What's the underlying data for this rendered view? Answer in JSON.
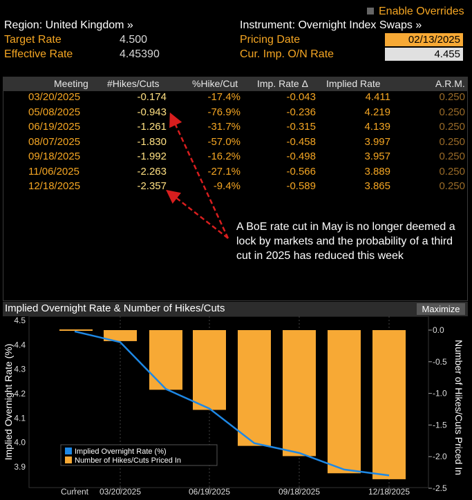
{
  "header": {
    "region": "Region: United Kingdom »",
    "instrument": "Instrument: Overnight Index Swaps »",
    "enable_overrides": "Enable Overrides",
    "target_rate_label": "Target Rate",
    "target_rate_value": "4.500",
    "effective_rate_label": "Effective Rate",
    "effective_rate_value": "4.45390",
    "pricing_date_label": "Pricing Date",
    "pricing_date_value": "02/13/2025",
    "cur_imp_label": "Cur. Imp. O/N Rate",
    "cur_imp_value": "4.455"
  },
  "table": {
    "columns": [
      "Meeting",
      "#Hikes/Cuts",
      "%Hike/Cut",
      "Imp. Rate Δ",
      "Implied Rate",
      "A.R.M."
    ],
    "rows": [
      {
        "meeting": "03/20/2025",
        "hikes": "-0.174",
        "pct": "-17.4%",
        "delta": "-0.043",
        "implied": "4.411",
        "arm": "0.250"
      },
      {
        "meeting": "05/08/2025",
        "hikes": "-0.943",
        "pct": "-76.9%",
        "delta": "-0.236",
        "implied": "4.219",
        "arm": "0.250"
      },
      {
        "meeting": "06/19/2025",
        "hikes": "-1.261",
        "pct": "-31.7%",
        "delta": "-0.315",
        "implied": "4.139",
        "arm": "0.250"
      },
      {
        "meeting": "08/07/2025",
        "hikes": "-1.830",
        "pct": "-57.0%",
        "delta": "-0.458",
        "implied": "3.997",
        "arm": "0.250"
      },
      {
        "meeting": "09/18/2025",
        "hikes": "-1.992",
        "pct": "-16.2%",
        "delta": "-0.498",
        "implied": "3.957",
        "arm": "0.250"
      },
      {
        "meeting": "11/06/2025",
        "hikes": "-2.263",
        "pct": "-27.1%",
        "delta": "-0.566",
        "implied": "3.889",
        "arm": "0.250"
      },
      {
        "meeting": "12/18/2025",
        "hikes": "-2.357",
        "pct": "-9.4%",
        "delta": "-0.589",
        "implied": "3.865",
        "arm": "0.250"
      }
    ]
  },
  "annotation": "A BoE rate cut in May is no longer deemed a lock by markets and the probability of a third cut in 2025 has reduced this week",
  "chart_panel": {
    "title": "Implied Overnight Rate & Number of Hikes/Cuts",
    "maximize": "Maximize"
  },
  "chart_data": {
    "type": "bar",
    "categories": [
      "Current",
      "03/20/2025",
      "05/08/2025",
      "06/19/2025",
      "08/07/2025",
      "09/18/2025",
      "11/06/2025",
      "12/18/2025"
    ],
    "x_tick_labels": [
      "Current",
      "03/20/2025",
      "06/19/2025",
      "09/18/2025",
      "12/18/2025"
    ],
    "series": [
      {
        "name": "Implied Overnight Rate (%)",
        "type": "line",
        "axis": "left",
        "color": "#1e88e5",
        "values": [
          4.455,
          4.411,
          4.219,
          4.139,
          3.997,
          3.957,
          3.889,
          3.865
        ]
      },
      {
        "name": "Number of Hikes/Cuts Priced In",
        "type": "bar",
        "axis": "right",
        "color": "#f7a935",
        "values": [
          0,
          -0.174,
          -0.943,
          -1.261,
          -1.83,
          -1.992,
          -2.263,
          -2.357
        ]
      }
    ],
    "ylabel": "Implied Overnight Rate (%)",
    "y2label": "Number of Hikes/Cuts Priced In",
    "ylim": [
      3.85,
      4.5
    ],
    "y2lim": [
      -2.5,
      0.15
    ],
    "yticks": [
      "4.5",
      "4.4",
      "4.3",
      "4.2",
      "4.1",
      "4.0",
      "3.9"
    ],
    "y2ticks": [
      "0.0",
      "-0.5",
      "-1.0",
      "-1.5",
      "-2.0",
      "-2.5"
    ],
    "legend_position": "bottom-left"
  }
}
